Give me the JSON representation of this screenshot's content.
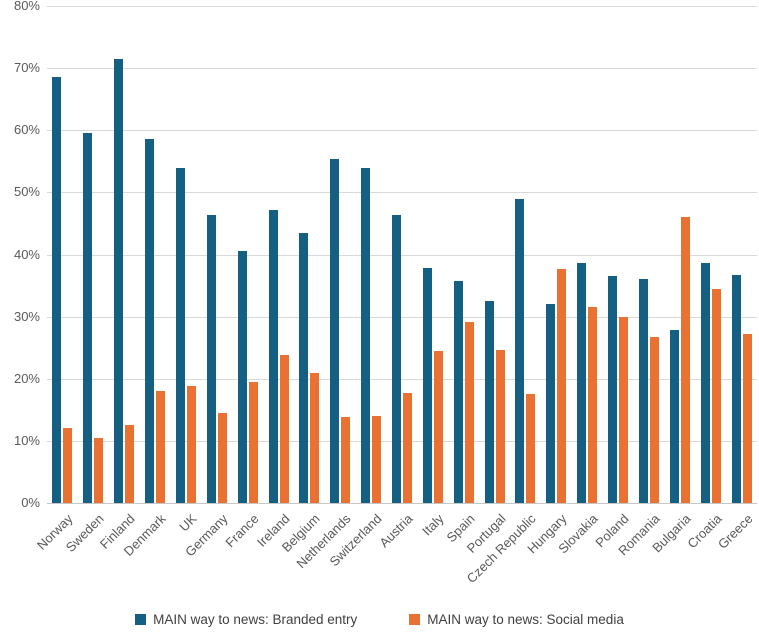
{
  "chart_data": {
    "type": "bar",
    "title": "",
    "xlabel": "",
    "ylabel": "",
    "categories": [
      "Norway",
      "Sweden",
      "Finland",
      "Denmark",
      "UK",
      "Germany",
      "France",
      "Ireland",
      "Belgium",
      "Netherlands",
      "Switzerland",
      "Austria",
      "Italy",
      "Spain",
      "Portugal",
      "Czech Republic",
      "Hungary",
      "Slovakia",
      "Poland",
      "Romania",
      "Bulgaria",
      "Croatia",
      "Greece"
    ],
    "series": [
      {
        "name": "MAIN way to news: Branded entry",
        "color": "#156082",
        "values": [
          68.6,
          59.6,
          71.4,
          58.6,
          54.0,
          46.3,
          40.5,
          47.2,
          43.4,
          55.3,
          54.0,
          46.4,
          37.8,
          35.7,
          32.5,
          48.9,
          32.1,
          38.7,
          36.6,
          36.1,
          27.9,
          38.7,
          36.7
        ]
      },
      {
        "name": "MAIN way to news: Social media",
        "color": "#E97132",
        "values": [
          12.1,
          10.5,
          12.5,
          18.1,
          18.9,
          14.5,
          19.4,
          23.8,
          20.9,
          13.9,
          14.0,
          17.7,
          24.4,
          29.1,
          24.7,
          17.6,
          37.6,
          31.6,
          29.9,
          26.8,
          46.0,
          34.4,
          27.2
        ]
      }
    ],
    "ylim": [
      0,
      80
    ],
    "ytick_step": 10,
    "ytick_labels": [
      "0%",
      "10%",
      "20%",
      "30%",
      "40%",
      "50%",
      "60%",
      "70%",
      "80%"
    ],
    "grid": true,
    "legend_position": "bottom"
  },
  "colors": {
    "background": "#FFFFFF",
    "gridline": "#D9D9D9",
    "axis_line": "#C6C6C6",
    "tick_label": "#595959",
    "legend_text": "#404040",
    "series_blue": "#156082",
    "series_orange": "#E97132"
  }
}
